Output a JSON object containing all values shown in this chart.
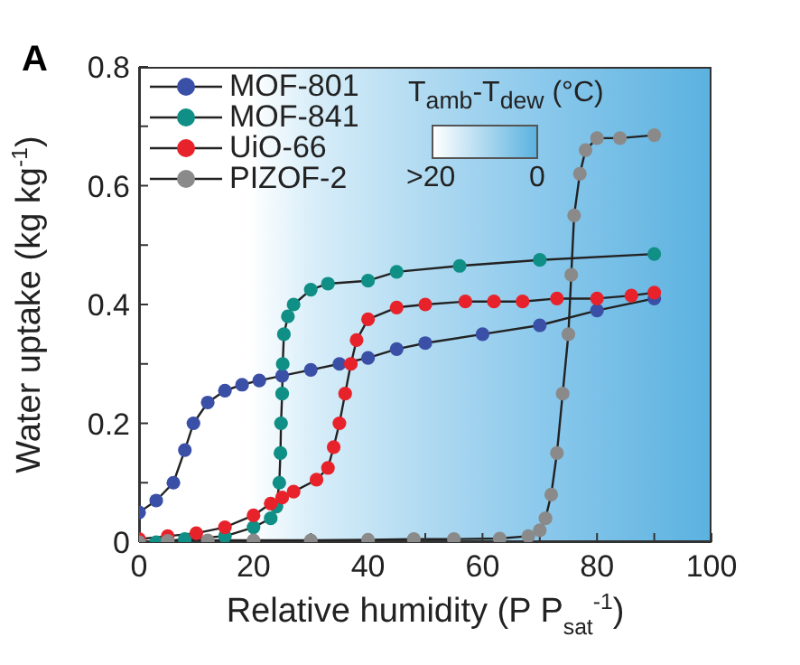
{
  "chart_data": {
    "type": "line",
    "title": "A",
    "xlabel": "Relative humidity (P P$_{sat}$$^{-1}$)",
    "ylabel": "Water uptake (kg kg$^{-1}$)",
    "annotations": [
      "T$_{amb}$-T$_{dew}$ (°C)",
      ">20",
      "0"
    ],
    "xlim": [
      0,
      100
    ],
    "xticks": [
      0,
      {
        "value": 10,
        "label": null
      },
      20,
      {
        "value": 30,
        "label": null
      },
      40,
      {
        "value": 50,
        "label": null
      },
      60,
      {
        "value": 70,
        "label": null
      },
      80,
      {
        "value": 90,
        "label": null
      },
      100
    ],
    "ylim": [
      0,
      0.8
    ],
    "yticks": [
      0,
      {
        "value": 0.1,
        "label": null
      },
      0.2,
      {
        "value": 0.3,
        "label": null
      },
      0.4,
      {
        "value": 0.5,
        "label": null
      },
      0.6,
      {
        "value": 0.7,
        "label": null
      },
      0.8
    ],
    "grid": false,
    "legend": "top left",
    "marker": "circle",
    "line_style": "solid",
    "series": [
      {
        "name": "MOF-801",
        "color": "#3a4fa6",
        "x": [
          0,
          3,
          6,
          8,
          9.5,
          12,
          15,
          18,
          21,
          25,
          30,
          35,
          40,
          45,
          50,
          60,
          70,
          80,
          90
        ],
        "values": [
          0.05,
          0.07,
          0.1,
          0.155,
          0.2,
          0.235,
          0.255,
          0.265,
          0.272,
          0.28,
          0.29,
          0.3,
          0.31,
          0.325,
          0.335,
          0.35,
          0.365,
          0.39,
          0.41
        ]
      },
      {
        "name": "MOF-841",
        "color": "#0f8f85",
        "x": [
          3,
          8,
          15,
          20,
          23,
          24,
          24.5,
          24.7,
          24.8,
          25,
          25.1,
          25.3,
          26,
          27,
          30,
          33,
          40,
          45,
          56,
          70,
          90
        ],
        "values": [
          0,
          0.005,
          0.01,
          0.025,
          0.04,
          0.06,
          0.1,
          0.15,
          0.2,
          0.25,
          0.3,
          0.35,
          0.38,
          0.4,
          0.425,
          0.435,
          0.44,
          0.455,
          0.465,
          0.475,
          0.485
        ]
      },
      {
        "name": "UiO-66",
        "color": "#e8222a",
        "x": [
          0,
          5,
          10,
          15,
          20,
          23,
          25,
          27,
          31,
          33,
          34,
          35,
          36,
          37,
          38,
          40,
          45,
          50,
          57,
          62,
          67,
          73,
          80,
          86,
          90
        ],
        "values": [
          0.005,
          0.01,
          0.015,
          0.025,
          0.045,
          0.065,
          0.075,
          0.085,
          0.105,
          0.125,
          0.16,
          0.2,
          0.25,
          0.3,
          0.34,
          0.375,
          0.395,
          0.4,
          0.405,
          0.405,
          0.405,
          0.41,
          0.41,
          0.415,
          0.42
        ]
      },
      {
        "name": "PIZOF-2",
        "color": "#8a8a8a",
        "x": [
          0,
          5,
          12,
          20,
          30,
          40,
          48,
          55,
          63,
          68,
          70,
          71,
          72,
          73,
          74,
          75,
          75.5,
          76,
          77,
          78,
          80,
          84,
          90
        ],
        "values": [
          0,
          0.002,
          0.003,
          0.003,
          0.003,
          0.004,
          0.005,
          0.005,
          0.006,
          0.01,
          0.02,
          0.04,
          0.08,
          0.15,
          0.25,
          0.35,
          0.45,
          0.55,
          0.62,
          0.66,
          0.68,
          0.68,
          0.685
        ]
      }
    ]
  }
}
